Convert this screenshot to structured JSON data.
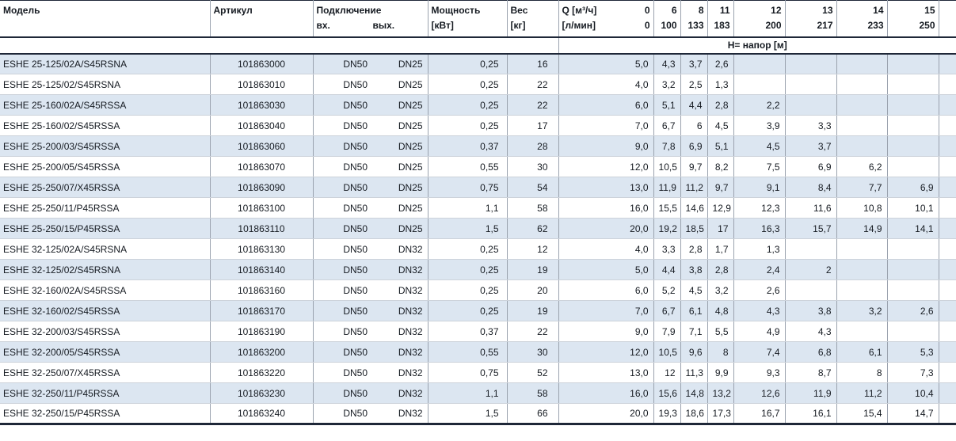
{
  "colors": {
    "row_alt": "#dce6f1",
    "border_dark": "#1e2738",
    "grid_v": "#9aa2ae",
    "grid_h": "#ccd2da",
    "text": "#161b22"
  },
  "header": {
    "model": "Модель",
    "article": "Артикул",
    "connection": "Подключение",
    "inlet": "вх.",
    "outlet": "вых.",
    "power_l1": "Мощность",
    "power_l2": "[кВт]",
    "weight_l1": "Вес",
    "weight_l2": "[кг]",
    "q_label": "Q [м³/ч]",
    "q_zero": "0",
    "lmin_label": "[л/мин]",
    "lmin_zero": "0",
    "head_row_label": "Н= напор [м]",
    "flow_columns": [
      {
        "q": "6",
        "lmin": "100"
      },
      {
        "q": "8",
        "lmin": "133"
      },
      {
        "q": "11",
        "lmin": "183"
      },
      {
        "q": "12",
        "lmin": "200"
      },
      {
        "q": "13",
        "lmin": "217"
      },
      {
        "q": "14",
        "lmin": "233"
      },
      {
        "q": "15",
        "lmin": "250"
      }
    ]
  },
  "rows": [
    {
      "model": "ESHE 25-125/02A/S45RSNA",
      "article": "101863000",
      "inlet": "DN50",
      "outlet": "DN25",
      "power": "0,25",
      "weight": "16",
      "heads": [
        "5,0",
        "4,3",
        "3,7",
        "2,6",
        "",
        "",
        "",
        ""
      ]
    },
    {
      "model": "ESHE 25-125/02/S45RSNA",
      "article": "101863010",
      "inlet": "DN50",
      "outlet": "DN25",
      "power": "0,25",
      "weight": "22",
      "heads": [
        "4,0",
        "3,2",
        "2,5",
        "1,3",
        "",
        "",
        "",
        ""
      ]
    },
    {
      "model": "ESHE 25-160/02A/S45RSSA",
      "article": "101863030",
      "inlet": "DN50",
      "outlet": "DN25",
      "power": "0,25",
      "weight": "22",
      "heads": [
        "6,0",
        "5,1",
        "4,4",
        "2,8",
        "2,2",
        "",
        "",
        ""
      ]
    },
    {
      "model": "ESHE 25-160/02/S45RSSA",
      "article": "101863040",
      "inlet": "DN50",
      "outlet": "DN25",
      "power": "0,25",
      "weight": "17",
      "heads": [
        "7,0",
        "6,7",
        "6",
        "4,5",
        "3,9",
        "3,3",
        "",
        ""
      ]
    },
    {
      "model": "ESHE 25-200/03/S45RSSA",
      "article": "101863060",
      "inlet": "DN50",
      "outlet": "DN25",
      "power": "0,37",
      "weight": "28",
      "heads": [
        "9,0",
        "7,8",
        "6,9",
        "5,1",
        "4,5",
        "3,7",
        "",
        ""
      ]
    },
    {
      "model": "ESHE 25-200/05/S45RSSA",
      "article": "101863070",
      "inlet": "DN50",
      "outlet": "DN25",
      "power": "0,55",
      "weight": "30",
      "heads": [
        "12,0",
        "10,5",
        "9,7",
        "8,2",
        "7,5",
        "6,9",
        "6,2",
        ""
      ]
    },
    {
      "model": "ESHE 25-250/07/X45RSSA",
      "article": "101863090",
      "inlet": "DN50",
      "outlet": "DN25",
      "power": "0,75",
      "weight": "54",
      "heads": [
        "13,0",
        "11,9",
        "11,2",
        "9,7",
        "9,1",
        "8,4",
        "7,7",
        "6,9"
      ]
    },
    {
      "model": "ESHE 25-250/11/P45RSSA",
      "article": "101863100",
      "inlet": "DN50",
      "outlet": "DN25",
      "power": "1,1",
      "weight": "58",
      "heads": [
        "16,0",
        "15,5",
        "14,6",
        "12,9",
        "12,3",
        "11,6",
        "10,8",
        "10,1"
      ]
    },
    {
      "model": "ESHE 25-250/15/P45RSSA",
      "article": "101863110",
      "inlet": "DN50",
      "outlet": "DN25",
      "power": "1,5",
      "weight": "62",
      "heads": [
        "20,0",
        "19,2",
        "18,5",
        "17",
        "16,3",
        "15,7",
        "14,9",
        "14,1"
      ]
    },
    {
      "model": "ESHE 32-125/02A/S45RSNA",
      "article": "101863130",
      "inlet": "DN50",
      "outlet": "DN32",
      "power": "0,25",
      "weight": "12",
      "heads": [
        "4,0",
        "3,3",
        "2,8",
        "1,7",
        "1,3",
        "",
        "",
        ""
      ]
    },
    {
      "model": "ESHE 32-125/02/S45RSNA",
      "article": "101863140",
      "inlet": "DN50",
      "outlet": "DN32",
      "power": "0,25",
      "weight": "19",
      "heads": [
        "5,0",
        "4,4",
        "3,8",
        "2,8",
        "2,4",
        "2",
        "",
        ""
      ]
    },
    {
      "model": "ESHE 32-160/02A/S45RSSA",
      "article": "101863160",
      "inlet": "DN50",
      "outlet": "DN32",
      "power": "0,25",
      "weight": "20",
      "heads": [
        "6,0",
        "5,2",
        "4,5",
        "3,2",
        "2,6",
        "",
        "",
        ""
      ]
    },
    {
      "model": "ESHE 32-160/02/S45RSSA",
      "article": "101863170",
      "inlet": "DN50",
      "outlet": "DN32",
      "power": "0,25",
      "weight": "19",
      "heads": [
        "7,0",
        "6,7",
        "6,1",
        "4,8",
        "4,3",
        "3,8",
        "3,2",
        "2,6"
      ]
    },
    {
      "model": "ESHE 32-200/03/S45RSSA",
      "article": "101863190",
      "inlet": "DN50",
      "outlet": "DN32",
      "power": "0,37",
      "weight": "22",
      "heads": [
        "9,0",
        "7,9",
        "7,1",
        "5,5",
        "4,9",
        "4,3",
        "",
        ""
      ]
    },
    {
      "model": "ESHE 32-200/05/S45RSSA",
      "article": "101863200",
      "inlet": "DN50",
      "outlet": "DN32",
      "power": "0,55",
      "weight": "30",
      "heads": [
        "12,0",
        "10,5",
        "9,6",
        "8",
        "7,4",
        "6,8",
        "6,1",
        "5,3"
      ]
    },
    {
      "model": "ESHE 32-250/07/X45RSSA",
      "article": "101863220",
      "inlet": "DN50",
      "outlet": "DN32",
      "power": "0,75",
      "weight": "52",
      "heads": [
        "13,0",
        "12",
        "11,3",
        "9,9",
        "9,3",
        "8,7",
        "8",
        "7,3"
      ]
    },
    {
      "model": "ESHE 32-250/11/P45RSSA",
      "article": "101863230",
      "inlet": "DN50",
      "outlet": "DN32",
      "power": "1,1",
      "weight": "58",
      "heads": [
        "16,0",
        "15,6",
        "14,8",
        "13,2",
        "12,6",
        "11,9",
        "11,2",
        "10,4"
      ]
    },
    {
      "model": "ESHE 32-250/15/P45RSSA",
      "article": "101863240",
      "inlet": "DN50",
      "outlet": "DN32",
      "power": "1,5",
      "weight": "66",
      "heads": [
        "20,0",
        "19,3",
        "18,6",
        "17,3",
        "16,7",
        "16,1",
        "15,4",
        "14,7"
      ]
    }
  ]
}
